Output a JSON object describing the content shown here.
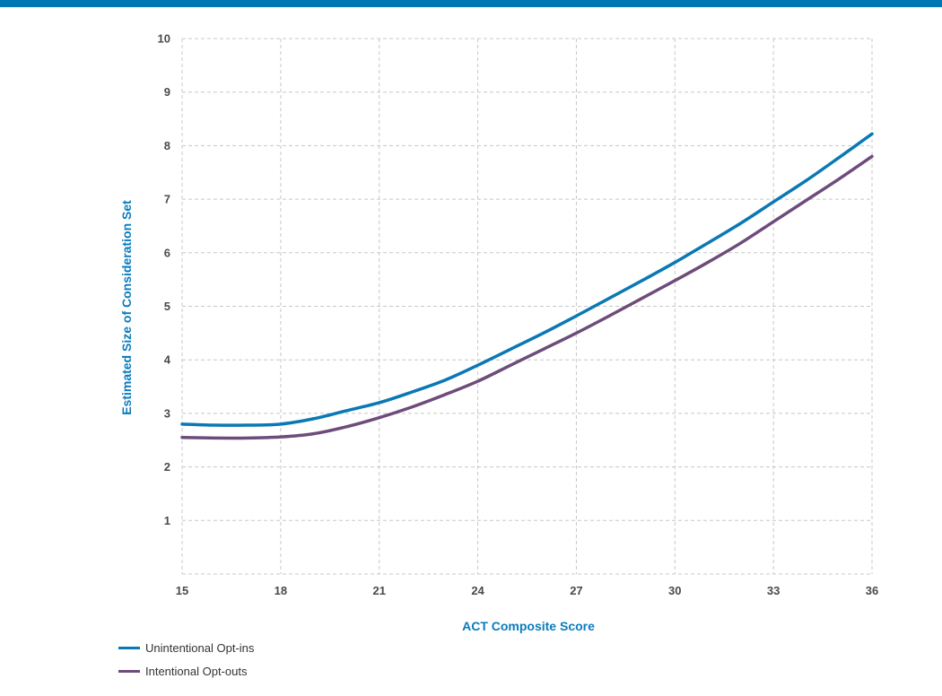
{
  "colors": {
    "top_rule": "#0077b4",
    "axis_title": "#0a7bbd",
    "grid": "#c8c8c8"
  },
  "chart_data": {
    "type": "line",
    "xlabel": "ACT Composite Score",
    "ylabel": "Estimated Size of Consideration Set",
    "xlim": [
      15,
      36
    ],
    "ylim": [
      0,
      10
    ],
    "x_ticks": [
      15,
      18,
      21,
      24,
      27,
      30,
      33,
      36
    ],
    "y_ticks": [
      1,
      2,
      3,
      4,
      5,
      6,
      7,
      8,
      9,
      10
    ],
    "grid": true,
    "legend_position": "bottom-left",
    "x": [
      15,
      16,
      17,
      18,
      19,
      20,
      21,
      22,
      23,
      24,
      25,
      26,
      27,
      28,
      29,
      30,
      31,
      32,
      33,
      34,
      35,
      36
    ],
    "series": [
      {
        "name": "Unintentional Opt-ins",
        "color": "#0a78b4",
        "values": [
          2.8,
          2.78,
          2.78,
          2.8,
          2.9,
          3.05,
          3.2,
          3.4,
          3.62,
          3.9,
          4.2,
          4.5,
          4.82,
          5.15,
          5.48,
          5.82,
          6.18,
          6.55,
          6.95,
          7.35,
          7.78,
          8.22
        ]
      },
      {
        "name": "Intentional Opt-outs",
        "color": "#6e4c7a",
        "values": [
          2.55,
          2.54,
          2.54,
          2.56,
          2.62,
          2.75,
          2.92,
          3.12,
          3.35,
          3.6,
          3.9,
          4.2,
          4.5,
          4.82,
          5.15,
          5.48,
          5.82,
          6.18,
          6.58,
          6.98,
          7.38,
          7.8
        ]
      }
    ]
  }
}
